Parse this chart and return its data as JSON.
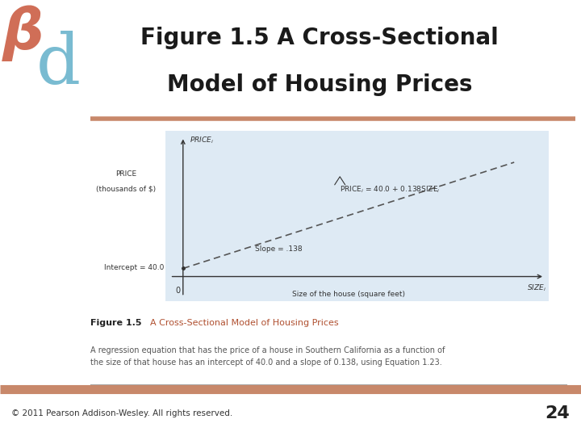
{
  "title_line1": "Figure 1.5 A Cross-Sectional",
  "title_line2": "Model of Housing Prices",
  "title_fontsize": 20,
  "title_color": "#1a1a1a",
  "page_bg": "#ffffff",
  "header_bg": "#ffffff",
  "plot_outer_bg": "#cce0ee",
  "plot_inner_bg": "#deeaf4",
  "separator_color_top": "#c8886a",
  "separator_color_bottom": "#add8e6",
  "figure_caption_bold": "Figure 1.5",
  "figure_caption_color": "#b05030",
  "figure_caption_text": "  A Cross-Sectional Model of Housing Prices",
  "figure_description": "A regression equation that has the price of a house in Southern California as a function of\nthe size of that house has an intercept of 40.0 and a slope of 0.138, using Equation 1.23.",
  "footer_text": "© 2011 Pearson Addison-Wesley. All rights reserved.",
  "footer_page": "24",
  "logo_beta_color": "#c8553a",
  "logo_d_color": "#6ab4cc",
  "x_label": "Size of the house (square feet)",
  "x_right_label": "SIZE",
  "y_top_label": "PRICE",
  "y_left_label1": "PRICE",
  "y_left_label2": "(thousands of $)",
  "intercept_label": "Intercept = 40.0",
  "slope_label": "Slope = .138",
  "zero_label": "0",
  "intercept": 40.0,
  "slope": 0.138,
  "line_color": "#555555",
  "axis_color": "#333333",
  "caption_line_color": "#aaaaaa"
}
